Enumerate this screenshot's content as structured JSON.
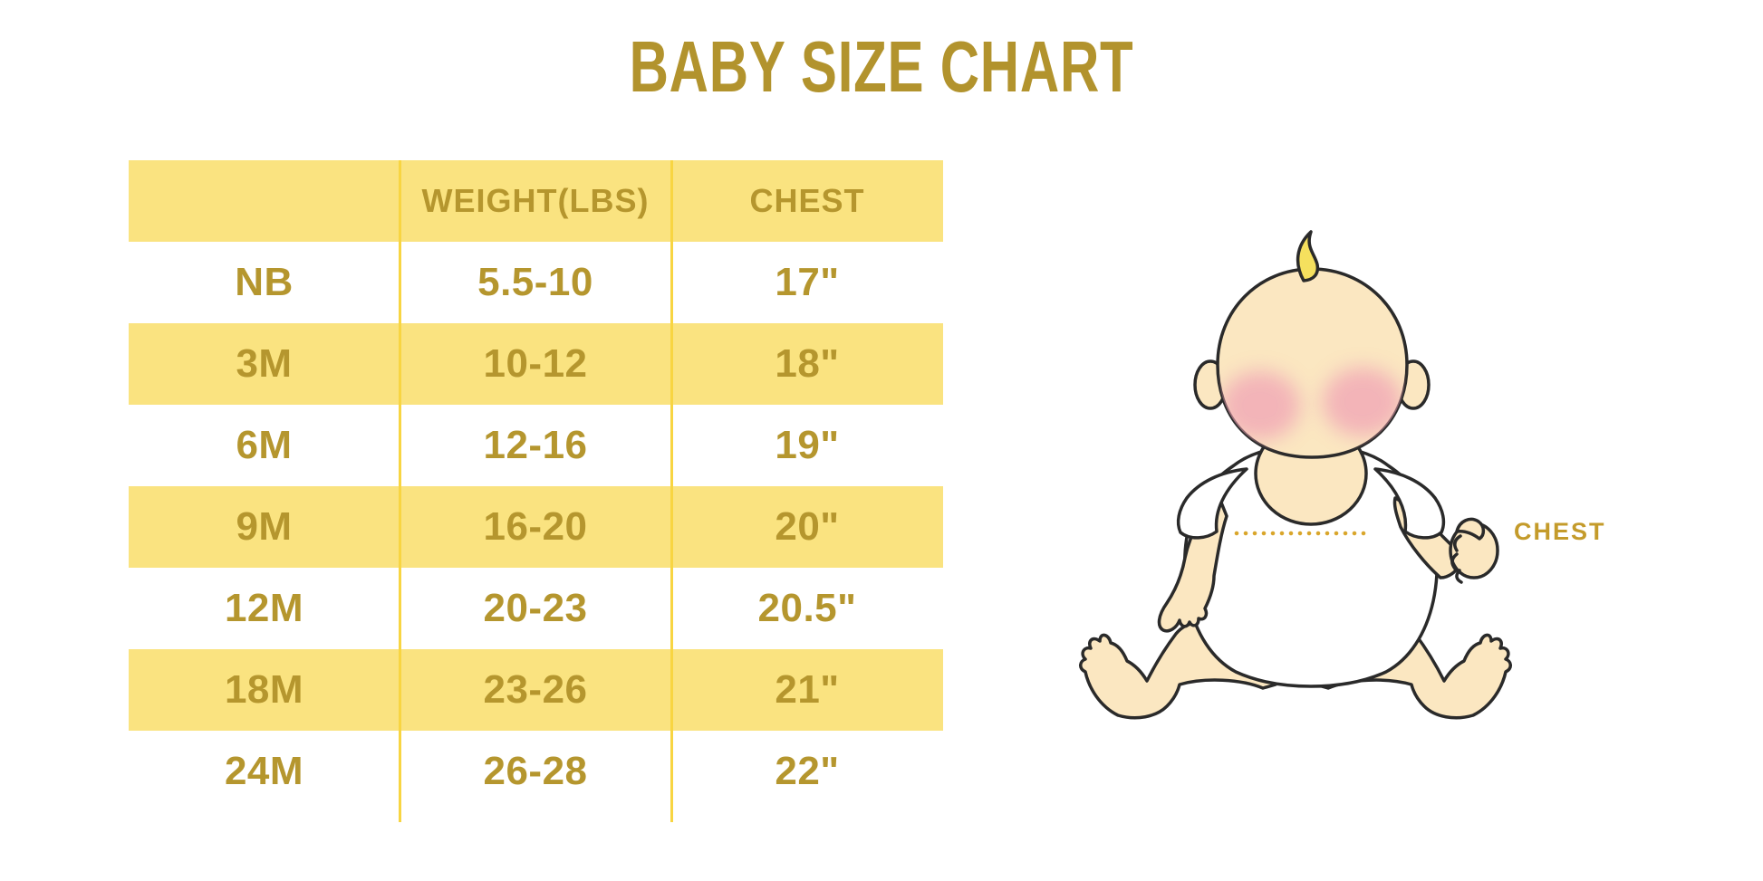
{
  "page": {
    "title": "BABY SIZE CHART"
  },
  "chart_data": {
    "type": "table",
    "title": "BABY SIZE CHART",
    "columns": [
      "",
      "WEIGHT(LBS)",
      "CHEST"
    ],
    "rows": [
      [
        "NB",
        "5.5-10",
        "17\""
      ],
      [
        "3M",
        "10-12",
        "18\""
      ],
      [
        "6M",
        "12-16",
        "19\""
      ],
      [
        "9M",
        "16-20",
        "20\""
      ],
      [
        "12M",
        "20-23",
        "20.5\""
      ],
      [
        "18M",
        "23-26",
        "21\""
      ],
      [
        "24M",
        "26-28",
        "22\""
      ]
    ],
    "row_striping": "header yellow, then alternating white/yellow",
    "grid": "vertical column dividers only",
    "legend_position": "none"
  },
  "illustration": {
    "chest_label": "CHEST",
    "subject": "sitting baby in white bodysuit with dotted chest measurement line"
  },
  "colors": {
    "title_gold": "#B2932D",
    "table_text_gold": "#B5962E",
    "row_yellow": "#FAE380",
    "divider_yellow": "#F8D542",
    "chest_label_gold": "#C49B2B",
    "dotted_line_gold": "#D9A62B",
    "baby_skin": "#FBE7C1",
    "baby_hair": "#F5E05E",
    "baby_cheek": "#F0A3B5",
    "outline": "#2A2A2A",
    "background": "#FFFFFF"
  }
}
